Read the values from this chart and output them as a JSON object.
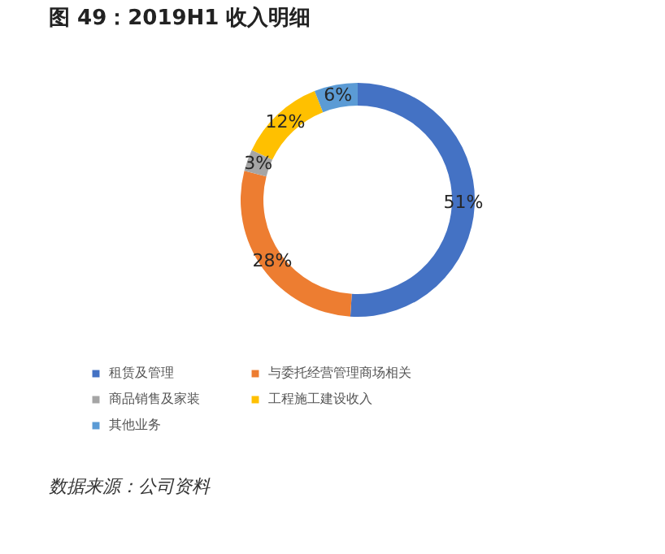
{
  "chart_data": {
    "type": "donut",
    "title": "图 49：2019H1 收入明细",
    "categories": [
      "租赁及管理",
      "与委托经营管理商场相关",
      "商品销售及家装",
      "工程施工建设收入",
      "其他业务"
    ],
    "values": [
      51,
      28,
      3,
      12,
      6
    ],
    "colors": [
      "#4472c4",
      "#ed7d31",
      "#a5a5a5",
      "#ffc000",
      "#5b9bd5"
    ],
    "value_labels": [
      "51%",
      "28%",
      "3%",
      "12%",
      "6%"
    ],
    "legend": "bottom",
    "annotations": [
      "数据来源：公司资料"
    ]
  }
}
